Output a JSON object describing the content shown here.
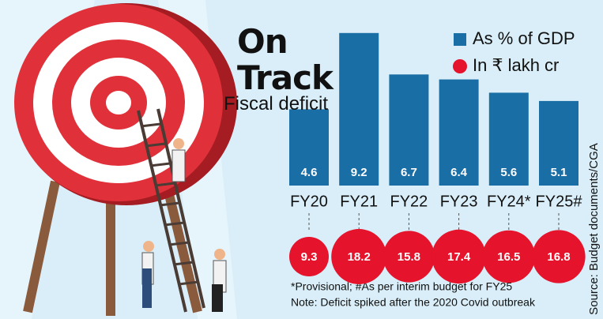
{
  "chart_data": {
    "type": "bar",
    "title": "On Track",
    "subtitle": "Fiscal deficit",
    "categories": [
      "FY20",
      "FY21",
      "FY22",
      "FY23",
      "FY24*",
      "FY25#"
    ],
    "series": [
      {
        "name": "As % of GDP",
        "color": "#1a6ea6",
        "marker": "bar",
        "values": [
          4.6,
          9.2,
          6.7,
          6.4,
          5.6,
          5.1
        ]
      },
      {
        "name": "In ₹ lakh cr",
        "color": "#e5132b",
        "marker": "bubble",
        "values": [
          9.3,
          18.2,
          15.8,
          17.4,
          16.5,
          16.8
        ]
      }
    ],
    "notes": [
      "*Provisional; #As per interim budget for FY25",
      "Note: Deficit spiked after the 2020 Covid outbreak"
    ],
    "source": "Source: Budget documents/CGA"
  }
}
